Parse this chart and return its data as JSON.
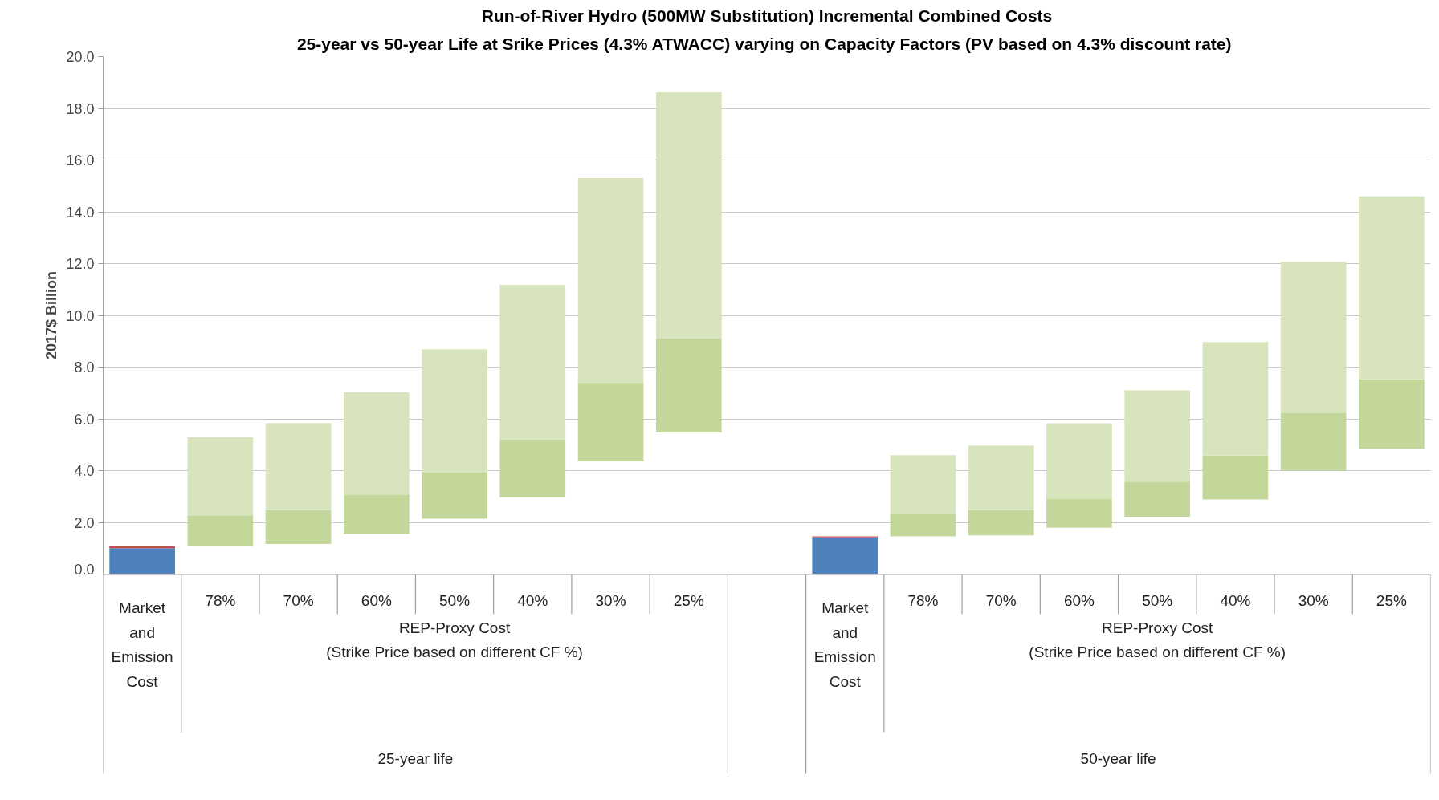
{
  "chart_data": {
    "type": "bar",
    "title": "Run-of-River Hydro (500MW Substitution) Incremental Combined Costs",
    "subtitle": "25-year vs 50-year Life at Srike Prices (4.3% ATWACC) varying on Capacity Factors  (PV based on 4.3% discount rate)",
    "ylabel": "2017$ Billion",
    "categories": [
      null,
      "78%",
      "70%",
      "60%",
      "50%",
      "40%",
      "30%",
      "25%",
      null,
      null,
      "78%",
      "70%",
      "60%",
      "50%",
      "40%",
      "30%",
      "25%"
    ],
    "series": [
      {
        "color": "#4f81bd",
        "base": [
          0,
          null,
          null,
          null,
          null,
          null,
          null,
          null,
          null,
          0,
          null,
          null,
          null,
          null,
          null,
          null,
          null
        ],
        "values": [
          1.0,
          null,
          null,
          null,
          null,
          null,
          null,
          null,
          null,
          1.42,
          null,
          null,
          null,
          null,
          null,
          null,
          null
        ]
      },
      {
        "color": "#c0504d",
        "base": [
          1.0,
          null,
          null,
          null,
          null,
          null,
          null,
          null,
          null,
          1.42,
          null,
          null,
          null,
          null,
          null,
          null,
          null
        ],
        "values": [
          0.07,
          null,
          null,
          null,
          null,
          null,
          null,
          null,
          null,
          0.04,
          null,
          null,
          null,
          null,
          null,
          null,
          null
        ]
      },
      {
        "color": "#c4d79b",
        "base": [
          null,
          1.09,
          1.16,
          1.55,
          2.14,
          2.97,
          4.36,
          5.47,
          null,
          null,
          1.46,
          1.5,
          1.79,
          2.22,
          2.88,
          4.0,
          4.84
        ],
        "values": [
          null,
          1.18,
          1.31,
          1.53,
          1.8,
          2.24,
          3.04,
          3.65,
          null,
          null,
          0.9,
          0.97,
          1.13,
          1.35,
          1.7,
          2.22,
          2.69
        ]
      },
      {
        "color": "#d8e4bc",
        "base": [
          null,
          2.27,
          2.47,
          3.08,
          3.94,
          5.21,
          7.4,
          9.12,
          null,
          null,
          2.36,
          2.47,
          2.92,
          3.57,
          4.58,
          6.22,
          7.53
        ],
        "values": [
          null,
          3.02,
          3.37,
          3.94,
          4.75,
          5.97,
          7.9,
          9.5,
          null,
          null,
          2.24,
          2.5,
          2.91,
          3.53,
          4.39,
          5.85,
          7.07
        ]
      }
    ],
    "ylim": [
      0,
      20
    ],
    "yticks": [
      {
        "value": 0,
        "label": "0.0"
      },
      {
        "value": 2,
        "label": "2.0"
      },
      {
        "value": 4,
        "label": "4.0"
      },
      {
        "value": 6,
        "label": "6.0"
      },
      {
        "value": 8,
        "label": "8.0"
      },
      {
        "value": 10,
        "label": "10.0"
      },
      {
        "value": 12,
        "label": "12.0"
      },
      {
        "value": 14,
        "label": "14.0"
      },
      {
        "value": 16,
        "label": "16.0"
      },
      {
        "value": 18,
        "label": "18.0"
      },
      {
        "value": 20,
        "label": "20.0"
      }
    ],
    "grid": "y",
    "annotations": [
      "Market\nand\nEmission\nCost",
      "REP-Proxy Cost\n(Strike Price based on different CF %)",
      "25-year life",
      "Market\nand\nEmission\nCost",
      "REP-Proxy Cost\n(Strike Price based on different CF %)",
      "50-year life"
    ]
  }
}
